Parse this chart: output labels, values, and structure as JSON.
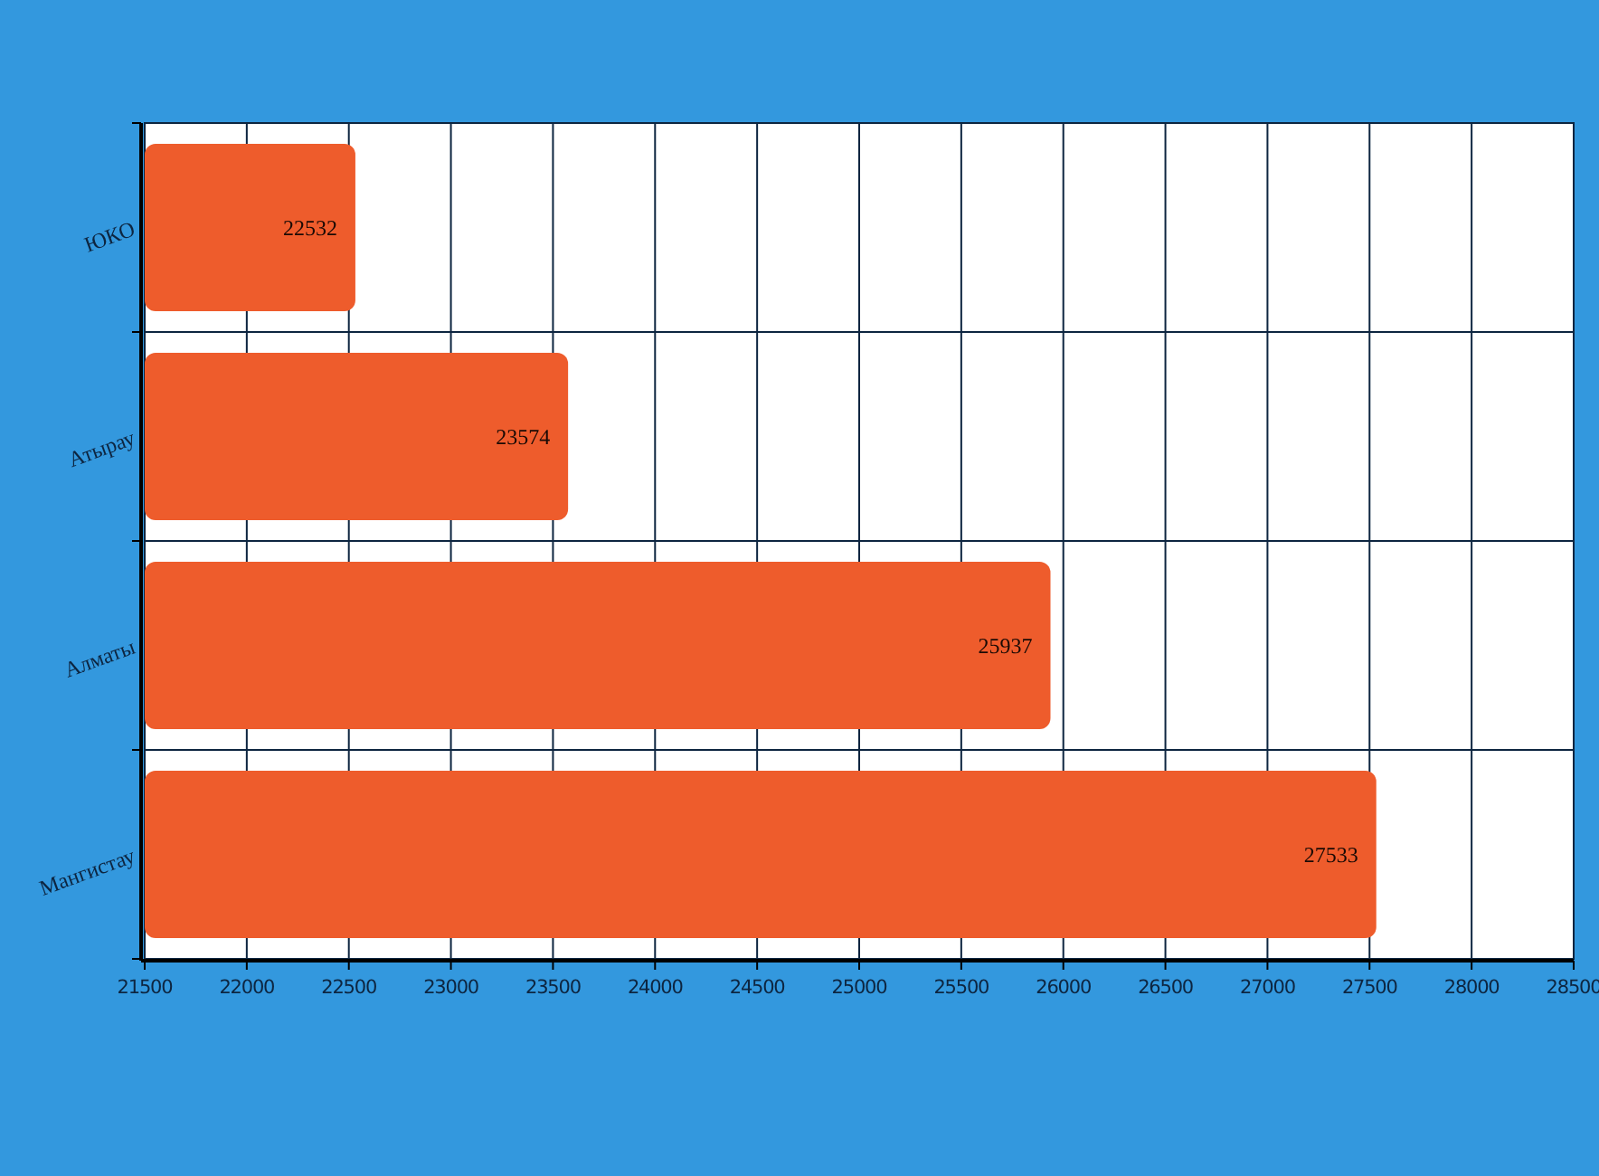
{
  "chart_data": {
    "type": "bar",
    "orientation": "horizontal",
    "categories": [
      "ЮКО",
      "Атырау",
      "Алматы",
      "Мангистау"
    ],
    "values": [
      22532,
      23574,
      25937,
      27533
    ],
    "color": "#ee5c2c",
    "xlim": [
      21500,
      28500
    ],
    "xticks": [
      21500,
      22000,
      22500,
      23000,
      23500,
      24000,
      24500,
      25000,
      25500,
      26000,
      26500,
      27000,
      27500,
      28000,
      28500
    ],
    "grid": true,
    "data_labels": true
  }
}
